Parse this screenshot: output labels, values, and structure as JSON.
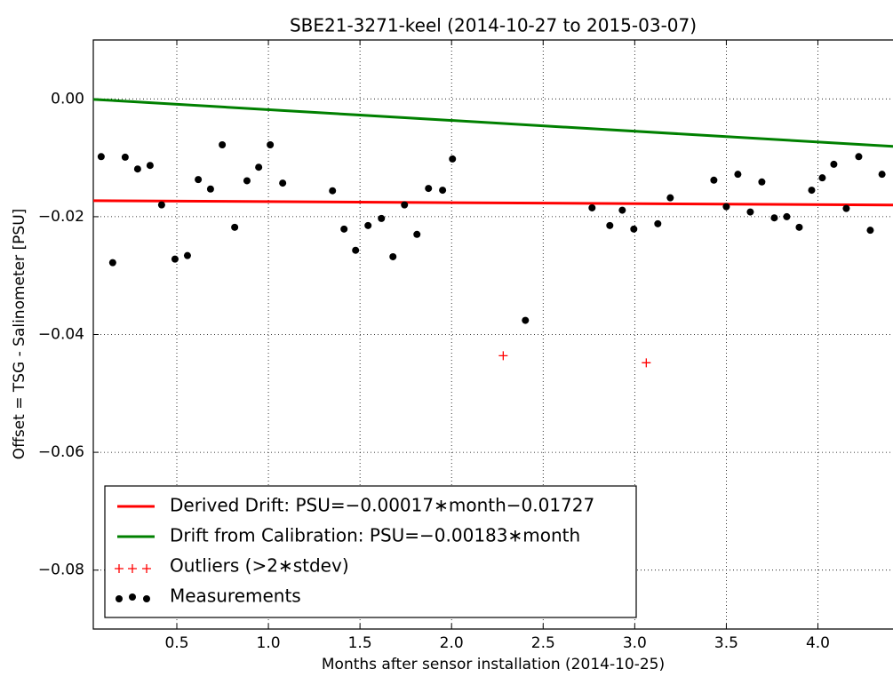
{
  "chart_data": {
    "type": "scatter",
    "title": "SBE21-3271-keel (2014-10-27 to 2015-03-07)",
    "x_label": "Months after sensor installation (2014-10-25)",
    "y_label": "Offset = TSG - Salinometer [PSU]",
    "xlim": [
      0.044,
      4.41
    ],
    "ylim": [
      -0.09,
      0.01
    ],
    "xticks": [
      0.5,
      {
        "value": 1,
        "label": "1.0"
      },
      1.5,
      {
        "value": 2,
        "label": "2.0"
      },
      2.5,
      {
        "value": 3,
        "label": "3.0"
      },
      3.5,
      {
        "value": 4,
        "label": "4.0"
      }
    ],
    "yticks": [
      {
        "value": 0,
        "label": "0.00"
      },
      {
        "value": -0.02,
        "label": "−0.02"
      },
      {
        "value": -0.04,
        "label": "−0.04"
      },
      {
        "value": -0.06,
        "label": "−0.06"
      },
      {
        "value": -0.08,
        "label": "−0.08"
      }
    ],
    "grid": true,
    "legend": "lower left",
    "series": [
      {
        "name": "Derived Drift: PSU=−0.00017∗month−0.01727",
        "color": "#ff0000",
        "marker": "line",
        "x": [
          0.044,
          4.41
        ],
        "values": [
          -0.01728,
          -0.01802
        ]
      },
      {
        "name": "Drift from Calibration: PSU=−0.00183∗month",
        "color": "#008000",
        "marker": "line",
        "x": [
          0.044,
          4.41
        ],
        "values": [
          -8e-05,
          -0.00807
        ]
      },
      {
        "name": "Outliers (>2∗stdev)",
        "color": "#ff0000",
        "marker": "plus",
        "x": [
          2.282,
          3.063
        ],
        "values": [
          -0.0436,
          -0.0448
        ]
      },
      {
        "name": "Measurements",
        "color": "#000000",
        "marker": "dot",
        "x": [
          0.087,
          0.15,
          0.218,
          0.286,
          0.354,
          0.417,
          0.49,
          0.558,
          0.617,
          0.684,
          0.748,
          0.816,
          0.883,
          0.947,
          1.01,
          1.078,
          1.35,
          1.413,
          1.476,
          1.544,
          1.617,
          1.68,
          1.743,
          1.811,
          1.874,
          1.951,
          2.005,
          2.403,
          2.767,
          2.864,
          2.932,
          2.995,
          3.126,
          3.194,
          3.432,
          3.5,
          3.563,
          3.631,
          3.694,
          3.762,
          3.83,
          3.898,
          3.966,
          4.024,
          4.087,
          4.155,
          4.223,
          4.286,
          4.35
        ],
        "values": [
          -0.0098,
          -0.0278,
          -0.0099,
          -0.0119,
          -0.0113,
          -0.018,
          -0.0272,
          -0.0266,
          -0.0137,
          -0.0153,
          -0.0078,
          -0.0218,
          -0.0139,
          -0.0116,
          -0.0078,
          -0.0143,
          -0.0156,
          -0.0221,
          -0.0257,
          -0.0215,
          -0.0203,
          -0.0268,
          -0.018,
          -0.023,
          -0.0152,
          -0.0155,
          -0.0102,
          -0.0376,
          -0.0185,
          -0.0215,
          -0.0189,
          -0.0221,
          -0.0212,
          -0.0168,
          -0.0138,
          -0.0183,
          -0.0128,
          -0.0192,
          -0.0141,
          -0.0202,
          -0.02,
          -0.0218,
          -0.0155,
          -0.0134,
          -0.0111,
          -0.0186,
          -0.0098,
          -0.0223,
          -0.0128
        ]
      }
    ]
  }
}
